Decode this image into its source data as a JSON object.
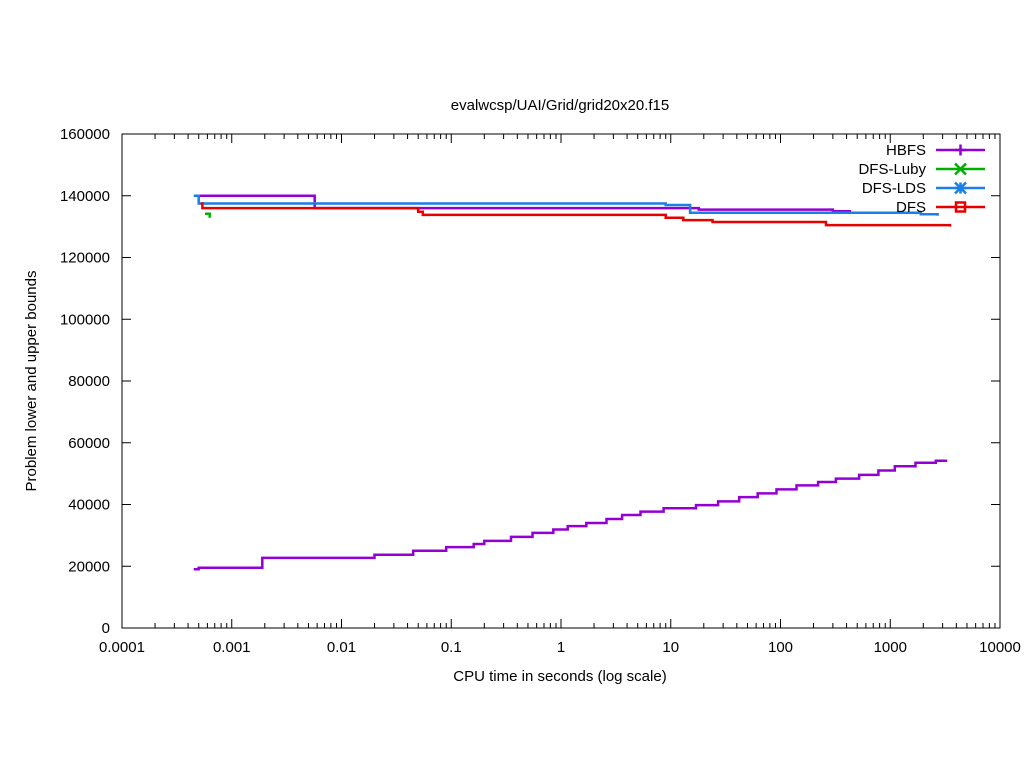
{
  "chart_data": {
    "type": "line",
    "title": "evalwcsp/UAI/Grid/grid20x20.f15",
    "xlabel": "CPU time in seconds (log scale)",
    "ylabel": "Problem lower and upper bounds",
    "xscale": "log",
    "xlim": [
      0.0001,
      10000
    ],
    "ylim": [
      0,
      160000
    ],
    "grid": false,
    "legend_position": "top-right",
    "x_ticks": [
      {
        "value": 0.0001,
        "label": "0.0001"
      },
      {
        "value": 0.001,
        "label": "0.001"
      },
      {
        "value": 0.01,
        "label": "0.01"
      },
      {
        "value": 0.1,
        "label": "0.1"
      },
      {
        "value": 1,
        "label": "1"
      },
      {
        "value": 10,
        "label": "10"
      },
      {
        "value": 100,
        "label": "100"
      },
      {
        "value": 1000,
        "label": "1000"
      },
      {
        "value": 10000,
        "label": "10000"
      }
    ],
    "y_ticks": [
      {
        "value": 0,
        "label": "0"
      },
      {
        "value": 20000,
        "label": "20000"
      },
      {
        "value": 40000,
        "label": "40000"
      },
      {
        "value": 60000,
        "label": "60000"
      },
      {
        "value": 80000,
        "label": "80000"
      },
      {
        "value": 100000,
        "label": "100000"
      },
      {
        "value": 120000,
        "label": "120000"
      },
      {
        "value": 140000,
        "label": "140000"
      },
      {
        "value": 160000,
        "label": "160000"
      }
    ],
    "series": [
      {
        "name": "HBFS",
        "color": "#9400d3",
        "marker": "plus",
        "role": "upper",
        "points": [
          [
            0.0005,
            140000
          ],
          [
            0.0057,
            140000
          ],
          [
            0.0057,
            136000
          ],
          [
            0.05,
            136000
          ],
          [
            18,
            136000
          ],
          [
            18,
            135500
          ],
          [
            300,
            135500
          ],
          [
            300,
            135000
          ],
          [
            440,
            135000
          ]
        ]
      },
      {
        "name": "HBFS",
        "color": "#9400d3",
        "marker": "plus",
        "role": "lower",
        "points": [
          [
            0.00045,
            19000
          ],
          [
            0.0005,
            19000
          ],
          [
            0.0005,
            19500
          ],
          [
            0.0019,
            19500
          ],
          [
            0.0019,
            22700
          ],
          [
            0.02,
            22700
          ],
          [
            0.02,
            23700
          ],
          [
            0.045,
            23700
          ],
          [
            0.045,
            25000
          ],
          [
            0.09,
            25000
          ],
          [
            0.09,
            26200
          ],
          [
            0.16,
            26200
          ],
          [
            0.16,
            27200
          ],
          [
            0.2,
            27200
          ],
          [
            0.2,
            28200
          ],
          [
            0.35,
            28200
          ],
          [
            0.35,
            29500
          ],
          [
            0.55,
            29500
          ],
          [
            0.55,
            30800
          ],
          [
            0.85,
            30800
          ],
          [
            0.85,
            31900
          ],
          [
            1.15,
            31900
          ],
          [
            1.15,
            33000
          ],
          [
            1.7,
            33000
          ],
          [
            1.7,
            34000
          ],
          [
            2.6,
            34000
          ],
          [
            2.6,
            35300
          ],
          [
            3.6,
            35300
          ],
          [
            3.6,
            36600
          ],
          [
            5.3,
            36600
          ],
          [
            5.3,
            37700
          ],
          [
            8.6,
            37700
          ],
          [
            8.6,
            38800
          ],
          [
            17,
            38800
          ],
          [
            17,
            39800
          ],
          [
            27,
            39800
          ],
          [
            27,
            41000
          ],
          [
            42,
            41000
          ],
          [
            42,
            42400
          ],
          [
            62,
            42400
          ],
          [
            62,
            43600
          ],
          [
            92,
            43600
          ],
          [
            92,
            44900
          ],
          [
            140,
            44900
          ],
          [
            140,
            46200
          ],
          [
            220,
            46200
          ],
          [
            220,
            47300
          ],
          [
            320,
            47300
          ],
          [
            320,
            48400
          ],
          [
            520,
            48400
          ],
          [
            520,
            49600
          ],
          [
            780,
            49600
          ],
          [
            780,
            51000
          ],
          [
            1100,
            51000
          ],
          [
            1100,
            52400
          ],
          [
            1700,
            52400
          ],
          [
            1700,
            53500
          ],
          [
            2600,
            53500
          ],
          [
            2600,
            54200
          ],
          [
            3300,
            54200
          ]
        ]
      },
      {
        "name": "DFS-Luby",
        "color": "#00b000",
        "marker": "x",
        "points": [
          [
            0.00057,
            134200
          ],
          [
            0.00063,
            134200
          ],
          [
            0.00063,
            132900
          ]
        ]
      },
      {
        "name": "DFS-LDS",
        "color": "#1a7fe6",
        "marker": "asterisk",
        "points": [
          [
            0.00045,
            140000
          ],
          [
            0.0005,
            140000
          ],
          [
            0.0005,
            137500
          ],
          [
            9,
            137500
          ],
          [
            9,
            137000
          ],
          [
            15,
            137000
          ],
          [
            15,
            134500
          ],
          [
            1900,
            134500
          ],
          [
            1900,
            134000
          ],
          [
            2700,
            134000
          ],
          [
            2700,
            133500
          ]
        ]
      },
      {
        "name": "DFS",
        "color": "#e60000",
        "marker": "square",
        "points": [
          [
            0.00052,
            137500
          ],
          [
            0.00054,
            137500
          ],
          [
            0.00054,
            136000
          ],
          [
            0.05,
            136000
          ],
          [
            0.05,
            134800
          ],
          [
            0.055,
            134800
          ],
          [
            0.055,
            133800
          ],
          [
            9,
            133800
          ],
          [
            9,
            132900
          ],
          [
            13,
            132900
          ],
          [
            13,
            132100
          ],
          [
            24,
            132100
          ],
          [
            24,
            131500
          ],
          [
            260,
            131500
          ],
          [
            260,
            130500
          ],
          [
            3500,
            130500
          ],
          [
            3500,
            130000
          ]
        ]
      }
    ],
    "legend": [
      {
        "name": "HBFS",
        "color": "#9400d3",
        "marker": "plus"
      },
      {
        "name": "DFS-Luby",
        "color": "#00b000",
        "marker": "x"
      },
      {
        "name": "DFS-LDS",
        "color": "#1a7fe6",
        "marker": "asterisk"
      },
      {
        "name": "DFS",
        "color": "#e60000",
        "marker": "square"
      }
    ]
  }
}
